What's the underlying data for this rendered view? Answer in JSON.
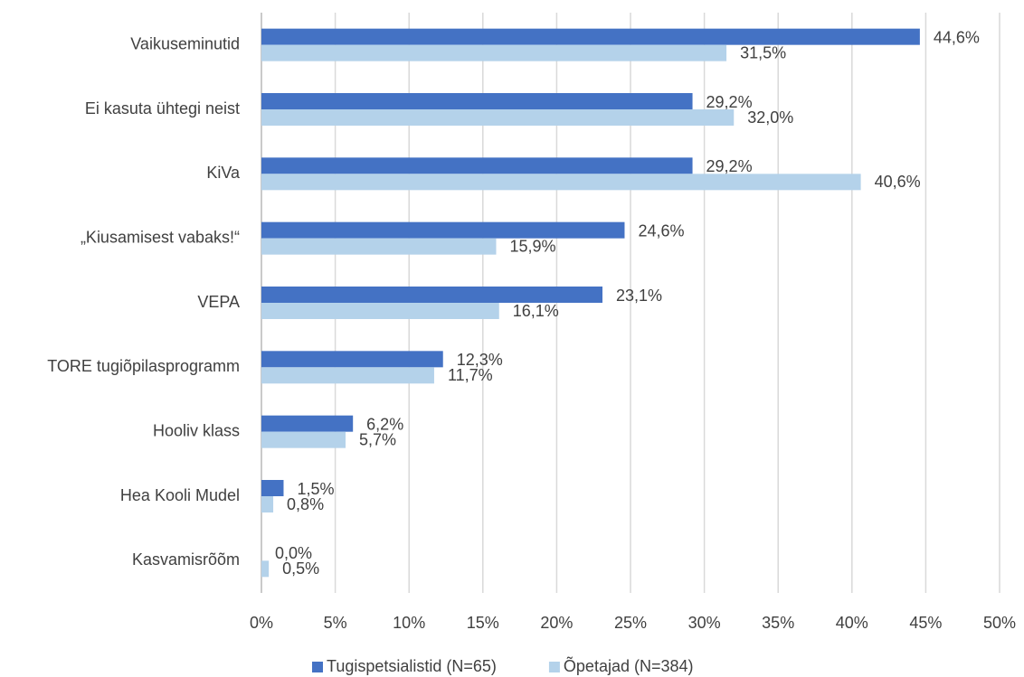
{
  "chart_data": {
    "type": "bar",
    "orientation": "horizontal",
    "categories": [
      "Vaikuseminutid",
      "Ei kasuta ühtegi neist",
      "KiVa",
      "„Kiusamisest vabaks!“",
      "VEPA",
      "TORE tugiõpilasprogramm",
      "Hooliv klass",
      "Hea Kooli Mudel",
      "Kasvamisrõõm"
    ],
    "series": [
      {
        "name": "Tugispetsialistid (N=65)",
        "color": "#4472c4",
        "values": [
          44.6,
          29.2,
          29.2,
          24.6,
          23.1,
          12.3,
          6.2,
          1.5,
          0.0
        ],
        "value_labels": [
          "44,6%",
          "29,2%",
          "29,2%",
          "24,6%",
          "23,1%",
          "12,3%",
          "6,2%",
          "1,5%",
          "0,0%"
        ]
      },
      {
        "name": "Õpetajad (N=384)",
        "color": "#b4d2ea",
        "values": [
          31.5,
          32.0,
          40.6,
          15.9,
          16.1,
          11.7,
          5.7,
          0.8,
          0.5
        ],
        "value_labels": [
          "31,5%",
          "32,0%",
          "40,6%",
          "15,9%",
          "16,1%",
          "11,7%",
          "5,7%",
          "0,8%",
          "0,5%"
        ]
      }
    ],
    "xlim": [
      0,
      50
    ],
    "xticks": [
      {
        "value": 0,
        "label": "0%"
      },
      {
        "value": 5,
        "label": "5%"
      },
      {
        "value": 10,
        "label": "10%"
      },
      {
        "value": 15,
        "label": "15%"
      },
      {
        "value": 20,
        "label": "20%"
      },
      {
        "value": 25,
        "label": "25%"
      },
      {
        "value": 30,
        "label": "30%"
      },
      {
        "value": 35,
        "label": "35%"
      },
      {
        "value": 40,
        "label": "40%"
      },
      {
        "value": 45,
        "label": "45%"
      },
      {
        "value": 50,
        "label": "50%"
      }
    ],
    "grid": true,
    "legend": "bottom"
  }
}
